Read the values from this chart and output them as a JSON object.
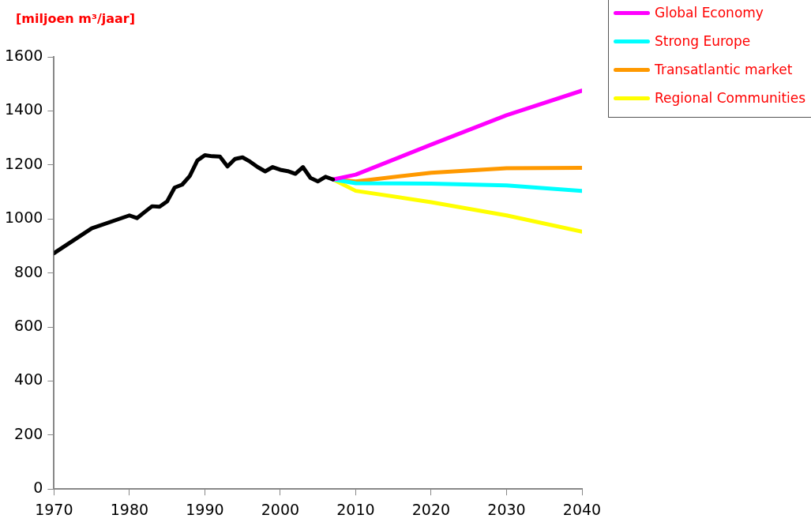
{
  "chart_data": {
    "type": "line",
    "ylabel": "[miljoen m³/jaar]",
    "xlim": [
      1970,
      2040
    ],
    "xticks": [
      1970,
      1980,
      1990,
      2000,
      2010,
      2020,
      2030,
      2040
    ],
    "ylim": [
      0,
      1600
    ],
    "yticks": [
      0,
      200,
      400,
      600,
      800,
      1000,
      1200,
      1400,
      1600
    ],
    "grid": false,
    "legend": "top right",
    "marker": "none",
    "line_style": "solid",
    "series": [
      {
        "color": "#000000",
        "x": [
          1970,
          1975,
          1980,
          1981,
          1982,
          1983,
          1984,
          1985,
          1986,
          1987,
          1988,
          1989,
          1990,
          1991,
          1992,
          1993,
          1994,
          1995,
          1996,
          1997,
          1998,
          1999,
          2000,
          2001,
          2002,
          2003,
          2004,
          2005,
          2006,
          2007
        ],
        "values": [
          873,
          965,
          1013,
          1003,
          1025,
          1047,
          1045,
          1065,
          1116,
          1127,
          1159,
          1216,
          1236,
          1232,
          1231,
          1194,
          1222,
          1228,
          1212,
          1192,
          1176,
          1192,
          1182,
          1177,
          1167,
          1192,
          1152,
          1139,
          1156,
          1146
        ]
      },
      {
        "name": "Global Economy",
        "color": "#ff00ff",
        "x": [
          2007,
          2010,
          2020,
          2030,
          2040
        ],
        "values": [
          1146,
          1164,
          1275,
          1384,
          1475
        ]
      },
      {
        "name": "Strong Europe",
        "color": "#00ffff",
        "x": [
          2007,
          2010,
          2020,
          2030,
          2040
        ],
        "values": [
          1146,
          1132,
          1131,
          1124,
          1104
        ]
      },
      {
        "name": "Transatlantic market",
        "color": "#ff9900",
        "x": [
          2007,
          2010,
          2020,
          2030,
          2040
        ],
        "values": [
          1146,
          1139,
          1171,
          1188,
          1189
        ]
      },
      {
        "name": "Regional Communities",
        "color": "#ffff00",
        "x": [
          2007,
          2010,
          2020,
          2030,
          2040
        ],
        "values": [
          1146,
          1104,
          1062,
          1013,
          953
        ]
      }
    ]
  }
}
